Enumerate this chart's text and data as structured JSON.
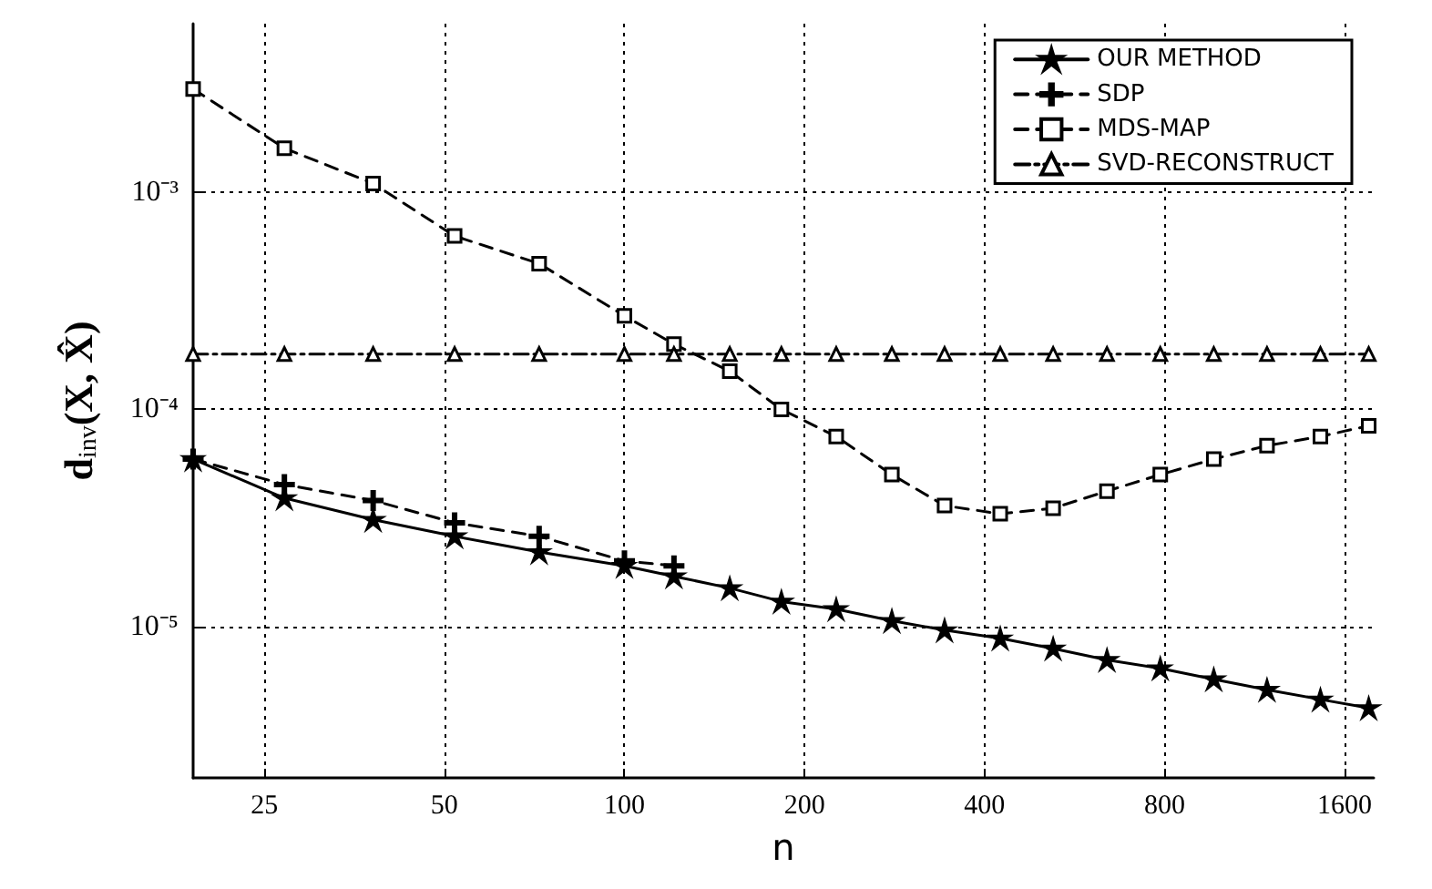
{
  "chart_data": {
    "type": "line",
    "xlabel": "n",
    "ylabel": "d$_{inv}$(X, X̂)",
    "log": "xy",
    "grid": true,
    "legend": "top right",
    "x": [
      19,
      27,
      38,
      52,
      72,
      100,
      121,
      150,
      183,
      226,
      280,
      343,
      425,
      521,
      641,
      787,
      967,
      1187,
      1458,
      1756
    ],
    "xlim": [
      19,
      1790
    ],
    "xticks": [
      25,
      50,
      100,
      200,
      400,
      800,
      1600
    ],
    "ylim": [
      2e-06,
      0.006
    ],
    "yticks": [
      {
        "value": 1e-05,
        "label": "10⁻⁵"
      },
      {
        "value": 0.0001,
        "label": "10⁻⁴"
      },
      {
        "value": 0.001,
        "label": "10⁻³"
      }
    ],
    "series": [
      {
        "name": "OUR METHOD",
        "color": "#000000",
        "marker": "star",
        "line_style": "solid",
        "values": [
          5.9e-05,
          3.9e-05,
          3.1e-05,
          2.6e-05,
          2.2e-05,
          1.9e-05,
          1.7e-05,
          1.5e-05,
          1.3e-05,
          1.2e-05,
          1.06e-05,
          9.6e-06,
          8.8e-06,
          7.9e-06,
          7e-06,
          6.4e-06,
          5.7e-06,
          5.1e-06,
          4.6e-06,
          4.2e-06
        ]
      },
      {
        "name": "SDP",
        "color": "#000000",
        "marker": "cross",
        "line_style": "dashed",
        "values": [
          5.9e-05,
          4.5e-05,
          3.8e-05,
          3e-05,
          2.6e-05,
          2e-05,
          1.9e-05,
          null,
          null,
          null,
          null,
          null,
          null,
          null,
          null,
          null,
          null,
          null,
          null,
          null
        ]
      },
      {
        "name": "MDS-MAP",
        "color": "#000000",
        "marker": "square",
        "line_style": "dashed",
        "values": [
          0.003,
          0.0016,
          0.0011,
          0.00063,
          0.00047,
          0.00027,
          0.0002,
          0.00015,
          0.0001,
          7.5e-05,
          5e-05,
          3.6e-05,
          3.3e-05,
          3.5e-05,
          4.2e-05,
          5e-05,
          5.9e-05,
          6.8e-05,
          7.5e-05,
          8.4e-05
        ]
      },
      {
        "name": "SVD-RECONSTRUCT",
        "color": "#000000",
        "marker": "triangle",
        "line_style": "dashdot",
        "values": [
          0.00018,
          0.00018,
          0.00018,
          0.00018,
          0.00018,
          0.00018,
          0.00018,
          0.00018,
          0.00018,
          0.00018,
          0.00018,
          0.00018,
          0.00018,
          0.00018,
          0.00018,
          0.00018,
          0.00018,
          0.00018,
          0.00018,
          0.00018
        ]
      }
    ]
  }
}
